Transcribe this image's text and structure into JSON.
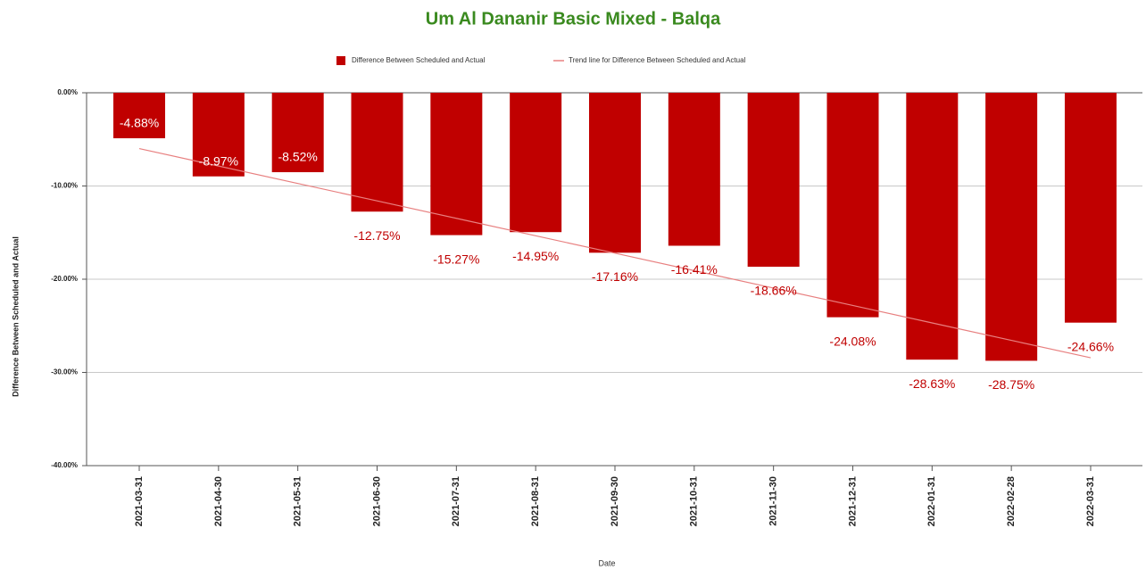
{
  "chart_data": {
    "type": "bar",
    "title": "Um Al Dananir Basic Mixed  - Balqa",
    "x_label": "Date",
    "y_label": "Difference Between Scheduled and Actual",
    "categories": [
      "2021-03-31",
      "2021-04-30",
      "2021-05-31",
      "2021-06-30",
      "2021-07-31",
      "2021-08-31",
      "2021-09-30",
      "2021-10-31",
      "2021-11-30",
      "2021-12-31",
      "2022-01-31",
      "2022-02-28",
      "2022-03-31"
    ],
    "series": [
      {
        "name": "Difference Between Scheduled and Actual",
        "color": "#c00000",
        "values": [
          -4.88,
          -8.97,
          -8.52,
          -12.75,
          -15.27,
          -14.95,
          -17.16,
          -16.41,
          -18.66,
          -24.08,
          -28.63,
          -28.75,
          -24.66
        ],
        "value_labels": [
          "-4.88%",
          "-8.97%",
          "-8.52%",
          "-12.75%",
          "-15.27%",
          "-14.95%",
          "-17.16%",
          "-16.41%",
          "-18.66%",
          "-24.08%",
          "-28.63%",
          "-28.75%",
          "-24.66%"
        ]
      },
      {
        "name": "Trend line for Difference Between Scheduled and Actual",
        "color": "#e88080",
        "type": "line",
        "values": [
          -5.99,
          -7.86,
          -9.73,
          -11.6,
          -13.47,
          -15.34,
          -17.21,
          -19.08,
          -20.95,
          -22.82,
          -24.69,
          -26.56,
          -28.43
        ]
      }
    ],
    "ylim": [
      -40,
      0
    ],
    "yticks": [
      {
        "value": 0,
        "label": "0.00%"
      },
      {
        "value": -10,
        "label": "-10.00%"
      },
      {
        "value": -20,
        "label": "-20.00%"
      },
      {
        "value": -30,
        "label": "-30.00%"
      },
      {
        "value": -40,
        "label": "-40.00%"
      }
    ],
    "grid": true,
    "legend": "top"
  }
}
